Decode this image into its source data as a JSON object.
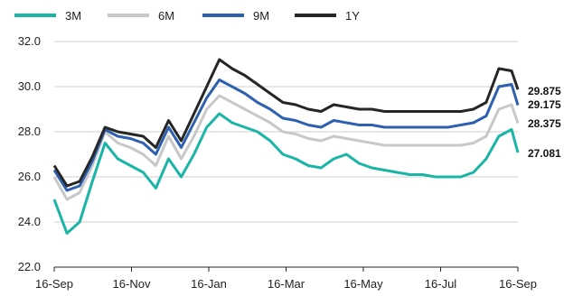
{
  "chart_data": {
    "type": "line",
    "title": "",
    "xlabel": "",
    "ylabel": "",
    "ylim": [
      22.0,
      32.0
    ],
    "yticks": [
      "22.0",
      "24.0",
      "26.0",
      "28.0",
      "30.0",
      "32.0"
    ],
    "xticks": [
      "16-Sep",
      "16-Nov",
      "16-Jan",
      "16-Mar",
      "16-May",
      "16-Jul",
      "16-Sep"
    ],
    "grid": "horizontal",
    "legend_position": "top-left",
    "x": [
      0,
      10,
      20,
      30,
      40,
      50,
      60,
      70,
      80,
      90,
      100,
      110,
      120,
      130,
      140,
      150,
      160,
      170,
      180,
      190,
      200,
      210,
      220,
      230,
      240,
      250,
      260,
      270,
      280,
      290,
      300,
      310,
      320,
      330,
      340,
      350,
      360,
      365
    ],
    "series": [
      {
        "name": "3M",
        "color": "#1ab5a6",
        "values": [
          25.0,
          23.5,
          24.0,
          25.8,
          27.5,
          26.8,
          26.5,
          26.2,
          25.5,
          26.8,
          26.0,
          27.0,
          28.2,
          28.8,
          28.4,
          28.2,
          28.0,
          27.6,
          27.0,
          26.8,
          26.5,
          26.4,
          26.8,
          27.0,
          26.6,
          26.4,
          26.3,
          26.2,
          26.1,
          26.1,
          26.0,
          26.0,
          26.0,
          26.2,
          26.8,
          27.8,
          28.1,
          27.08
        ]
      },
      {
        "name": "6M",
        "color": "#c8c8c8",
        "values": [
          26.0,
          25.0,
          25.3,
          26.5,
          28.0,
          27.5,
          27.3,
          27.0,
          26.5,
          27.8,
          26.8,
          27.8,
          29.0,
          29.6,
          29.3,
          29.0,
          28.7,
          28.4,
          28.0,
          27.9,
          27.7,
          27.6,
          27.8,
          27.7,
          27.6,
          27.5,
          27.4,
          27.4,
          27.4,
          27.4,
          27.4,
          27.4,
          27.4,
          27.5,
          27.8,
          29.0,
          29.2,
          28.375
        ]
      },
      {
        "name": "9M",
        "color": "#2e60b0",
        "values": [
          26.3,
          25.4,
          25.6,
          26.7,
          28.1,
          27.8,
          27.7,
          27.5,
          27.0,
          28.2,
          27.3,
          28.4,
          29.5,
          30.3,
          30.0,
          29.7,
          29.3,
          29.0,
          28.6,
          28.5,
          28.3,
          28.2,
          28.5,
          28.4,
          28.3,
          28.3,
          28.2,
          28.2,
          28.2,
          28.2,
          28.2,
          28.2,
          28.3,
          28.4,
          28.7,
          30.0,
          30.1,
          29.175
        ]
      },
      {
        "name": "1Y",
        "color": "#262626",
        "values": [
          26.5,
          25.6,
          25.8,
          26.9,
          28.2,
          28.0,
          27.9,
          27.8,
          27.3,
          28.5,
          27.6,
          28.8,
          30.0,
          31.2,
          30.8,
          30.5,
          30.1,
          29.7,
          29.3,
          29.2,
          29.0,
          28.9,
          29.2,
          29.1,
          29.0,
          29.0,
          28.9,
          28.9,
          28.9,
          28.9,
          28.9,
          28.9,
          28.9,
          29.0,
          29.3,
          30.8,
          30.7,
          29.875
        ]
      }
    ],
    "end_labels": [
      "29.875",
      "29.175",
      "28.375",
      "27.081"
    ]
  }
}
